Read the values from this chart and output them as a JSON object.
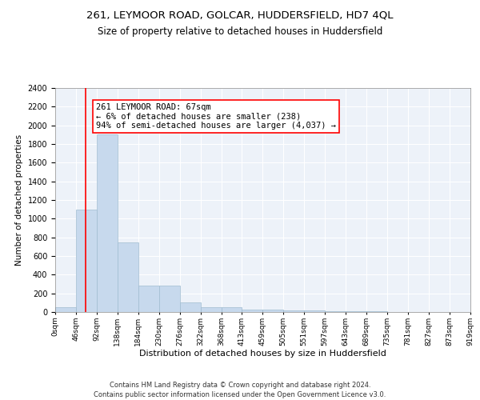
{
  "title1": "261, LEYMOOR ROAD, GOLCAR, HUDDERSFIELD, HD7 4QL",
  "title2": "Size of property relative to detached houses in Huddersfield",
  "xlabel": "Distribution of detached houses by size in Huddersfield",
  "ylabel": "Number of detached properties",
  "bar_edges": [
    0,
    46,
    92,
    138,
    184,
    230,
    276,
    322,
    368,
    413,
    459,
    505,
    551,
    597,
    643,
    689,
    735,
    781,
    827,
    873,
    919
  ],
  "bar_heights": [
    50,
    1100,
    1900,
    750,
    280,
    280,
    100,
    50,
    50,
    30,
    25,
    20,
    15,
    10,
    8,
    5,
    4,
    3,
    2,
    2
  ],
  "bar_color": "#c7d9ed",
  "bar_edgecolor": "#a0bcd0",
  "red_line_x": 67,
  "annotation_text": "261 LEYMOOR ROAD: 67sqm\n← 6% of detached houses are smaller (238)\n94% of semi-detached houses are larger (4,037) →",
  "annotation_box_color": "white",
  "annotation_box_edgecolor": "red",
  "ylim": [
    0,
    2400
  ],
  "yticks": [
    0,
    200,
    400,
    600,
    800,
    1000,
    1200,
    1400,
    1600,
    1800,
    2000,
    2200,
    2400
  ],
  "tick_labels": [
    "0sqm",
    "46sqm",
    "92sqm",
    "138sqm",
    "184sqm",
    "230sqm",
    "276sqm",
    "322sqm",
    "368sqm",
    "413sqm",
    "459sqm",
    "505sqm",
    "551sqm",
    "597sqm",
    "643sqm",
    "689sqm",
    "735sqm",
    "781sqm",
    "827sqm",
    "873sqm",
    "919sqm"
  ],
  "bg_color": "#edf2f9",
  "grid_color": "white",
  "footer": "Contains HM Land Registry data © Crown copyright and database right 2024.\nContains public sector information licensed under the Open Government Licence v3.0.",
  "title1_fontsize": 9.5,
  "title2_fontsize": 8.5,
  "xlabel_fontsize": 8,
  "ylabel_fontsize": 7.5,
  "tick_fontsize": 6.5,
  "ytick_fontsize": 7,
  "footer_fontsize": 6,
  "annot_fontsize": 7.5
}
